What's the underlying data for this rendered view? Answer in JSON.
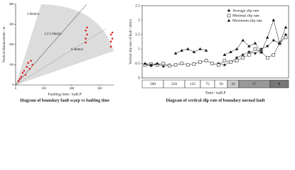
{
  "charts": [
    {
      "type": "scatter",
      "title": "Diagram of boundary fault scarp vs faulting time",
      "x_label": "Faulting time / kaB.P",
      "y_label": "Vertical displacement / m",
      "annotations": [
        "2.0mm/a",
        "1.2-1.6mm/a",
        "0.4mm/a"
      ],
      "xlim": [
        0,
        350
      ],
      "xticks": [
        0,
        100,
        200,
        300
      ],
      "ylim": [
        0,
        400
      ],
      "yticks": [
        0,
        100,
        200,
        300,
        400
      ],
      "color": "#e02020",
      "x": [
        10,
        15,
        20,
        25,
        30,
        35,
        40,
        45,
        50,
        55,
        60,
        250,
        250,
        255,
        250,
        255,
        340,
        340,
        345,
        340,
        345
      ],
      "values": [
        20,
        30,
        40,
        60,
        70,
        50,
        90,
        110,
        80,
        120,
        100,
        210,
        230,
        250,
        270,
        285,
        190,
        215,
        230,
        250,
        260
      ]
    },
    {
      "type": "line",
      "title": "Diagram of vertical slip rate of boundary normal fault",
      "x_label": "Time / kaB.P",
      "y_label": "Vertical slip rate of fault / mm/a",
      "categories": [
        null,
        null,
        null,
        null,
        null,
        null,
        null,
        null,
        null,
        null,
        null,
        null,
        null,
        null,
        null,
        null,
        null,
        null,
        null,
        null,
        null,
        null,
        null,
        null
      ],
      "ylim": [
        0,
        2.5
      ],
      "yticks": [
        0,
        0.5,
        1,
        1.5,
        2,
        2.5
      ],
      "time_bands": [
        "500",
        "250",
        "125",
        "75",
        "58",
        "32",
        "17",
        "8"
      ],
      "series": [
        {
          "name": "Average slip rate",
          "color": "#111",
          "marker": "star",
          "values": [
            0.45,
            0.42,
            0.48,
            0.4,
            0.45,
            null,
            null,
            null,
            null,
            null,
            null,
            null,
            0.5,
            0.45,
            0.55,
            0.7,
            0.8,
            0.9,
            0.85,
            1.0,
            1.1,
            1.3,
            1.2,
            1.5
          ]
        },
        {
          "name": "Minimal slip rate",
          "color": "#111",
          "marker": "square",
          "values": [
            0.45,
            0.48,
            0.45,
            0.5,
            0.42,
            0.45,
            0.5,
            0.45,
            0.48,
            0.55,
            0.6,
            0.5,
            0.45,
            0.6,
            0.55,
            0.6,
            0.7,
            0.8,
            1.0,
            0.9,
            0.7,
            0.8,
            1.2,
            1.4
          ]
        },
        {
          "name": "Maximum slip rate",
          "color": "#111",
          "marker": "triangle",
          "values": [
            0.5,
            0.45,
            0.5,
            null,
            null,
            0.85,
            0.95,
            1.0,
            0.9,
            1.0,
            0.95,
            null,
            null,
            0.8,
            0.9,
            1.0,
            1.3,
            1.1,
            1.2,
            0.9,
            1.4,
            2.0,
            1.2,
            1.75
          ]
        }
      ]
    }
  ]
}
